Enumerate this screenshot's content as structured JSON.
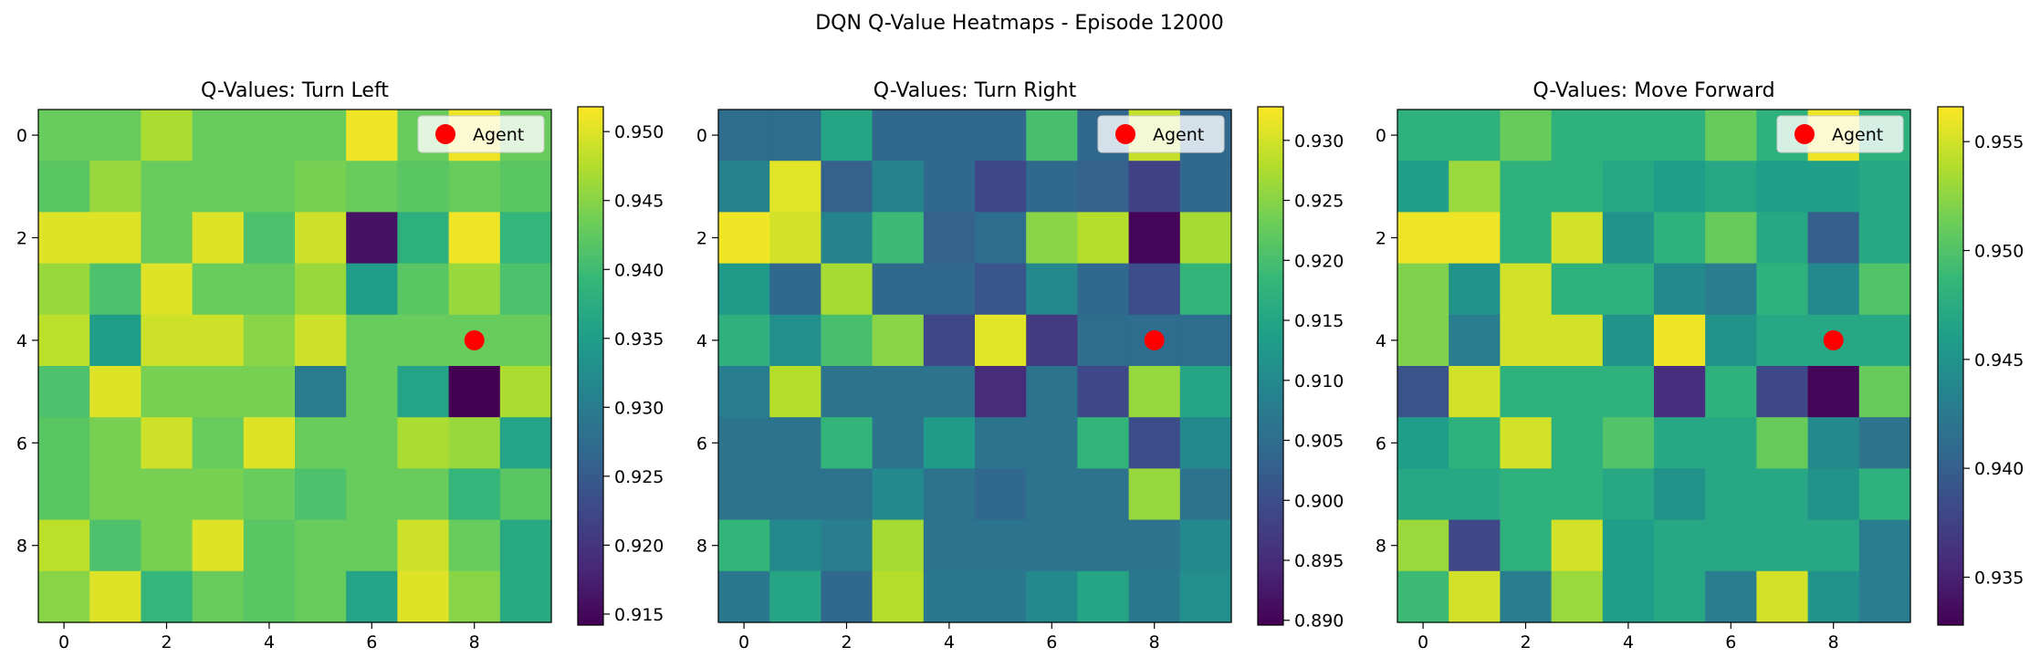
{
  "title": "DQN Q-Value Heatmaps - Episode 12000",
  "chart_data": [
    {
      "type": "heatmap",
      "title": "Q-Values: Turn Left",
      "colormap": "viridis",
      "clim": [
        0.9142,
        0.9518
      ],
      "colorbar_ticks": [
        "0.915",
        "0.920",
        "0.925",
        "0.930",
        "0.935",
        "0.940",
        "0.945",
        "0.950"
      ],
      "colorbar_values": [
        0.915,
        0.92,
        0.925,
        0.93,
        0.935,
        0.94,
        0.945,
        0.95
      ],
      "x_ticks": [
        0,
        2,
        4,
        6,
        8
      ],
      "y_ticks": [
        0,
        2,
        4,
        6,
        8
      ],
      "grid": [
        [
          0.943,
          0.943,
          0.947,
          0.943,
          0.943,
          0.943,
          0.951,
          0.943,
          0.951,
          0.943
        ],
        [
          0.942,
          0.946,
          0.943,
          0.943,
          0.943,
          0.944,
          0.943,
          0.942,
          0.943,
          0.942
        ],
        [
          0.95,
          0.95,
          0.943,
          0.95,
          0.941,
          0.949,
          0.916,
          0.938,
          0.951,
          0.939
        ],
        [
          0.946,
          0.941,
          0.95,
          0.943,
          0.943,
          0.946,
          0.935,
          0.942,
          0.946,
          0.941
        ],
        [
          0.948,
          0.935,
          0.949,
          0.949,
          0.945,
          0.949,
          0.943,
          0.943,
          0.943,
          0.943
        ],
        [
          0.941,
          0.95,
          0.944,
          0.944,
          0.944,
          0.93,
          0.943,
          0.936,
          0.914,
          0.947
        ],
        [
          0.942,
          0.944,
          0.949,
          0.943,
          0.95,
          0.943,
          0.943,
          0.947,
          0.946,
          0.936
        ],
        [
          0.942,
          0.944,
          0.944,
          0.944,
          0.943,
          0.941,
          0.943,
          0.943,
          0.939,
          0.942
        ],
        [
          0.948,
          0.941,
          0.944,
          0.95,
          0.942,
          0.943,
          0.943,
          0.949,
          0.943,
          0.937
        ],
        [
          0.945,
          0.95,
          0.939,
          0.943,
          0.942,
          0.943,
          0.936,
          0.95,
          0.945,
          0.937
        ]
      ],
      "agent": {
        "x": 8,
        "y": 4,
        "label": "Agent",
        "color": "#ff0000"
      }
    },
    {
      "type": "heatmap",
      "title": "Q-Values: Turn Right",
      "colormap": "viridis",
      "clim": [
        0.8896,
        0.9328
      ],
      "colorbar_ticks": [
        "0.890",
        "0.895",
        "0.900",
        "0.905",
        "0.910",
        "0.915",
        "0.920",
        "0.925",
        "0.930"
      ],
      "colorbar_values": [
        0.89,
        0.895,
        0.9,
        0.905,
        0.91,
        0.915,
        0.92,
        0.925,
        0.93
      ],
      "x_ticks": [
        0,
        2,
        4,
        6,
        8
      ],
      "y_ticks": [
        0,
        2,
        4,
        6,
        8
      ],
      "grid": [
        [
          0.905,
          0.905,
          0.915,
          0.904,
          0.904,
          0.904,
          0.92,
          0.904,
          0.929,
          0.904
        ],
        [
          0.909,
          0.931,
          0.903,
          0.909,
          0.904,
          0.899,
          0.904,
          0.903,
          0.898,
          0.904
        ],
        [
          0.932,
          0.93,
          0.909,
          0.919,
          0.903,
          0.905,
          0.925,
          0.928,
          0.89,
          0.927
        ],
        [
          0.913,
          0.904,
          0.927,
          0.904,
          0.904,
          0.901,
          0.91,
          0.904,
          0.9,
          0.918
        ],
        [
          0.917,
          0.911,
          0.92,
          0.925,
          0.899,
          0.931,
          0.897,
          0.905,
          0.905,
          0.905
        ],
        [
          0.908,
          0.928,
          0.906,
          0.906,
          0.906,
          0.895,
          0.906,
          0.899,
          0.926,
          0.915
        ],
        [
          0.906,
          0.906,
          0.918,
          0.906,
          0.913,
          0.906,
          0.906,
          0.918,
          0.9,
          0.91
        ],
        [
          0.906,
          0.906,
          0.906,
          0.91,
          0.906,
          0.904,
          0.906,
          0.906,
          0.926,
          0.906
        ],
        [
          0.918,
          0.91,
          0.908,
          0.927,
          0.906,
          0.906,
          0.906,
          0.906,
          0.906,
          0.91
        ],
        [
          0.907,
          0.915,
          0.904,
          0.928,
          0.907,
          0.907,
          0.91,
          0.915,
          0.907,
          0.911
        ]
      ],
      "agent": {
        "x": 8,
        "y": 4,
        "label": "Agent",
        "color": "#ff0000"
      }
    },
    {
      "type": "heatmap",
      "title": "Q-Values: Move Forward",
      "colormap": "viridis",
      "clim": [
        0.9328,
        0.9566
      ],
      "colorbar_ticks": [
        "0.935",
        "0.940",
        "0.945",
        "0.950",
        "0.955"
      ],
      "colorbar_values": [
        0.935,
        0.94,
        0.945,
        0.95,
        0.955
      ],
      "x_ticks": [
        0,
        2,
        4,
        6,
        8
      ],
      "y_ticks": [
        0,
        2,
        4,
        6,
        8
      ],
      "grid": [
        [
          0.948,
          0.948,
          0.951,
          0.948,
          0.948,
          0.948,
          0.951,
          0.948,
          0.956,
          0.948
        ],
        [
          0.946,
          0.953,
          0.948,
          0.948,
          0.947,
          0.946,
          0.947,
          0.946,
          0.946,
          0.947
        ],
        [
          0.956,
          0.956,
          0.948,
          0.955,
          0.945,
          0.948,
          0.951,
          0.947,
          0.94,
          0.947
        ],
        [
          0.952,
          0.945,
          0.955,
          0.948,
          0.948,
          0.944,
          0.943,
          0.948,
          0.944,
          0.95
        ],
        [
          0.952,
          0.943,
          0.955,
          0.955,
          0.945,
          0.956,
          0.945,
          0.947,
          0.947,
          0.947
        ],
        [
          0.939,
          0.955,
          0.948,
          0.948,
          0.948,
          0.936,
          0.948,
          0.938,
          0.933,
          0.951
        ],
        [
          0.946,
          0.948,
          0.955,
          0.948,
          0.95,
          0.947,
          0.947,
          0.951,
          0.944,
          0.942
        ],
        [
          0.947,
          0.947,
          0.948,
          0.948,
          0.947,
          0.945,
          0.947,
          0.947,
          0.945,
          0.948
        ],
        [
          0.953,
          0.938,
          0.948,
          0.955,
          0.946,
          0.947,
          0.947,
          0.947,
          0.947,
          0.943
        ],
        [
          0.949,
          0.955,
          0.943,
          0.953,
          0.946,
          0.947,
          0.943,
          0.955,
          0.945,
          0.943
        ]
      ],
      "agent": {
        "x": 8,
        "y": 4,
        "label": "Agent",
        "color": "#ff0000"
      }
    }
  ]
}
